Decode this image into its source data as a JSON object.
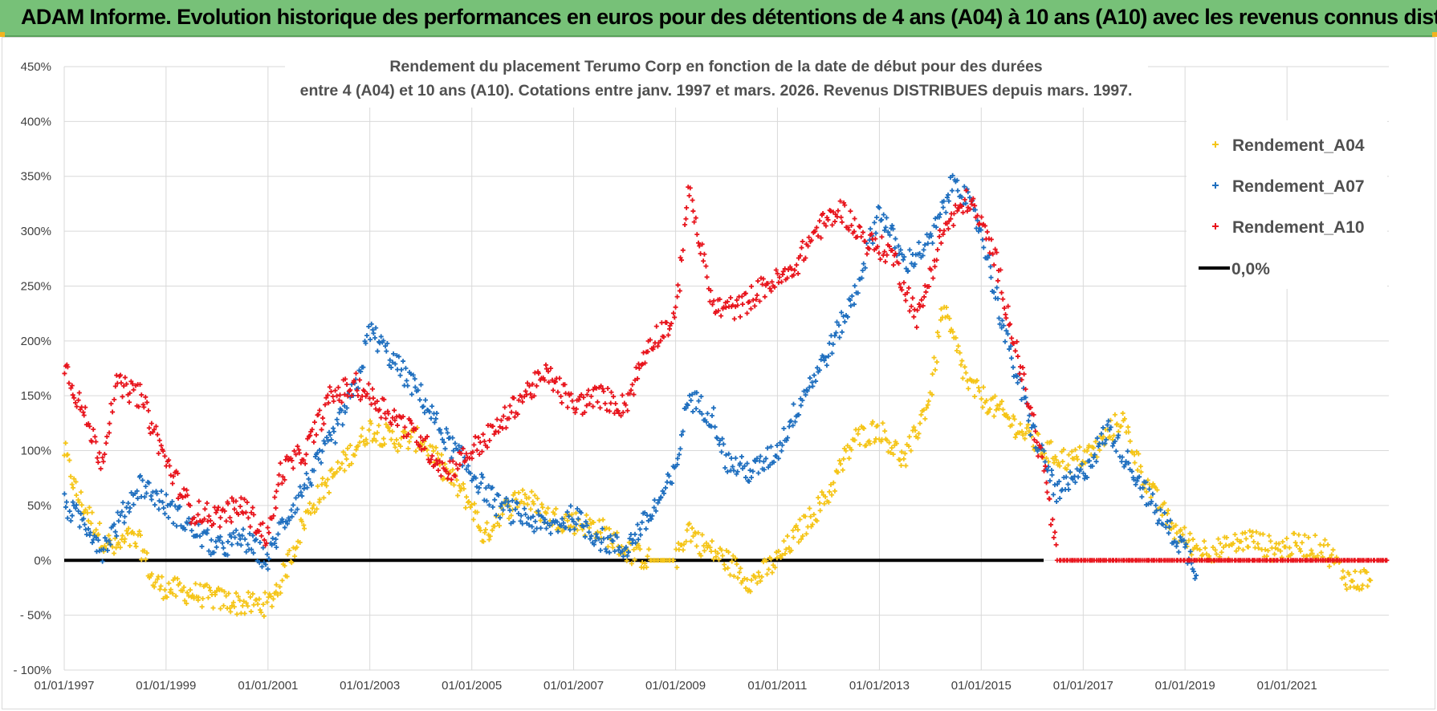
{
  "banner": {
    "text": "ADAM Informe. Evolution historique des performances en euros pour des détentions de 4 ans (A04) à 10 ans (A10) avec les revenus connus distribués"
  },
  "colors": {
    "banner_bg": "#77c178",
    "a04": "#f5c518",
    "a07": "#1f6fbf",
    "a10": "#e8141c",
    "zero": "#000000",
    "grid": "#d9d9d9"
  },
  "chart_data": {
    "type": "scatter",
    "title_lines": [
      "Rendement du placement Terumo Corp en fonction de la date de début pour des durées",
      "entre 4 (A04) et 10 ans (A10). Cotations entre janv. 1997 et mars. 2026. Revenus DISTRIBUES depuis mars. 1997."
    ],
    "xlabel": "",
    "ylabel": "",
    "x_ticks": [
      "01/01/1997",
      "01/01/1999",
      "01/01/2001",
      "01/01/2003",
      "01/01/2005",
      "01/01/2007",
      "01/01/2009",
      "01/01/2011",
      "01/01/2013",
      "01/01/2015",
      "01/01/2017",
      "01/01/2019",
      "01/01/2021"
    ],
    "x_range": [
      "1997-01-01",
      "2023-01-01"
    ],
    "y_ticks": [
      "- 100%",
      "- 50%",
      "0%",
      "50%",
      "100%",
      "150%",
      "200%",
      "250%",
      "300%",
      "350%",
      "400%",
      "450%"
    ],
    "ylim": [
      -100,
      450
    ],
    "grid": true,
    "legend_position": "top-right",
    "series": [
      {
        "name": "Rendement_A04",
        "marker": "+",
        "points": [
          [
            "1997-01",
            100
          ],
          [
            "1997-04",
            60
          ],
          [
            "1997-07",
            40
          ],
          [
            "1997-10",
            20
          ],
          [
            "1998-01",
            10
          ],
          [
            "1998-04",
            20
          ],
          [
            "1998-07",
            15
          ],
          [
            "1998-10",
            -20
          ],
          [
            "1999-01",
            -25
          ],
          [
            "1999-07",
            -30
          ],
          [
            "2000-01",
            -35
          ],
          [
            "2000-07",
            -40
          ],
          [
            "2001-01",
            -40
          ],
          [
            "2001-04",
            -20
          ],
          [
            "2001-07",
            10
          ],
          [
            "2001-10",
            40
          ],
          [
            "2002-01",
            60
          ],
          [
            "2002-07",
            90
          ],
          [
            "2003-01",
            120
          ],
          [
            "2003-07",
            110
          ],
          [
            "2004-01",
            110
          ],
          [
            "2004-07",
            80
          ],
          [
            "2005-01",
            50
          ],
          [
            "2005-04",
            20
          ],
          [
            "2005-07",
            40
          ],
          [
            "2006-01",
            60
          ],
          [
            "2006-07",
            40
          ],
          [
            "2007-01",
            35
          ],
          [
            "2007-07",
            30
          ],
          [
            "2008-01",
            10
          ],
          [
            "2008-07",
            0
          ],
          [
            "2009-01",
            0
          ],
          [
            "2009-04",
            30
          ],
          [
            "2009-07",
            15
          ],
          [
            "2010-01",
            0
          ],
          [
            "2010-07",
            -20
          ],
          [
            "2011-01",
            0
          ],
          [
            "2011-07",
            30
          ],
          [
            "2012-01",
            60
          ],
          [
            "2012-07",
            110
          ],
          [
            "2013-01",
            120
          ],
          [
            "2013-07",
            90
          ],
          [
            "2014-01",
            150
          ],
          [
            "2014-04",
            230
          ],
          [
            "2014-10",
            160
          ],
          [
            "2015-04",
            140
          ],
          [
            "2015-10",
            120
          ],
          [
            "2016-04",
            100
          ],
          [
            "2016-10",
            90
          ],
          [
            "2017-04",
            100
          ],
          [
            "2017-10",
            130
          ],
          [
            "2018-04",
            70
          ],
          [
            "2018-10",
            30
          ],
          [
            "2019-04",
            10
          ],
          [
            "2019-10",
            10
          ],
          [
            "2020-04",
            20
          ],
          [
            "2020-10",
            10
          ],
          [
            "2021-04",
            15
          ],
          [
            "2021-10",
            10
          ],
          [
            "2022-04",
            -20
          ],
          [
            "2022-09",
            -15
          ]
        ]
      },
      {
        "name": "Rendement_A07",
        "marker": "+",
        "points": [
          [
            "1997-01",
            50
          ],
          [
            "1997-07",
            30
          ],
          [
            "1997-10",
            10
          ],
          [
            "1998-01",
            30
          ],
          [
            "1998-07",
            70
          ],
          [
            "1999-01",
            50
          ],
          [
            "1999-07",
            30
          ],
          [
            "2000-01",
            10
          ],
          [
            "2000-07",
            20
          ],
          [
            "2001-01",
            0
          ],
          [
            "2001-04",
            30
          ],
          [
            "2001-10",
            70
          ],
          [
            "2002-04",
            110
          ],
          [
            "2002-10",
            160
          ],
          [
            "2003-01",
            210
          ],
          [
            "2003-07",
            180
          ],
          [
            "2004-01",
            150
          ],
          [
            "2004-07",
            110
          ],
          [
            "2005-01",
            80
          ],
          [
            "2005-07",
            50
          ],
          [
            "2006-01",
            40
          ],
          [
            "2006-07",
            30
          ],
          [
            "2007-01",
            40
          ],
          [
            "2007-07",
            20
          ],
          [
            "2008-01",
            10
          ],
          [
            "2008-07",
            40
          ],
          [
            "2009-01",
            80
          ],
          [
            "2009-04",
            150
          ],
          [
            "2009-10",
            130
          ],
          [
            "2010-01",
            90
          ],
          [
            "2010-07",
            80
          ],
          [
            "2011-01",
            100
          ],
          [
            "2011-07",
            150
          ],
          [
            "2012-01",
            190
          ],
          [
            "2012-07",
            240
          ],
          [
            "2013-01",
            320
          ],
          [
            "2013-07",
            270
          ],
          [
            "2014-01",
            290
          ],
          [
            "2014-07",
            350
          ],
          [
            "2015-01",
            300
          ],
          [
            "2015-07",
            200
          ],
          [
            "2016-01",
            120
          ],
          [
            "2016-07",
            60
          ],
          [
            "2017-01",
            80
          ],
          [
            "2017-07",
            120
          ],
          [
            "2018-01",
            80
          ],
          [
            "2018-07",
            40
          ],
          [
            "2019-01",
            10
          ],
          [
            "2019-04",
            -10
          ]
        ]
      },
      {
        "name": "Rendement_A10",
        "marker": "+",
        "points": [
          [
            "1997-01",
            180
          ],
          [
            "1997-07",
            120
          ],
          [
            "1997-10",
            90
          ],
          [
            "1998-01",
            160
          ],
          [
            "1998-07",
            150
          ],
          [
            "1999-01",
            90
          ],
          [
            "1999-07",
            45
          ],
          [
            "2000-01",
            40
          ],
          [
            "2000-07",
            50
          ],
          [
            "2001-01",
            20
          ],
          [
            "2001-04",
            80
          ],
          [
            "2001-10",
            100
          ],
          [
            "2002-04",
            150
          ],
          [
            "2002-10",
            160
          ],
          [
            "2003-01",
            150
          ],
          [
            "2003-07",
            130
          ],
          [
            "2004-01",
            110
          ],
          [
            "2004-07",
            80
          ],
          [
            "2005-01",
            100
          ],
          [
            "2005-07",
            120
          ],
          [
            "2006-01",
            150
          ],
          [
            "2006-07",
            170
          ],
          [
            "2007-01",
            140
          ],
          [
            "2007-07",
            150
          ],
          [
            "2008-01",
            140
          ],
          [
            "2008-07",
            200
          ],
          [
            "2009-01",
            220
          ],
          [
            "2009-04",
            340
          ],
          [
            "2009-10",
            230
          ],
          [
            "2010-04",
            230
          ],
          [
            "2010-10",
            250
          ],
          [
            "2011-04",
            260
          ],
          [
            "2011-10",
            300
          ],
          [
            "2012-04",
            320
          ],
          [
            "2012-10",
            290
          ],
          [
            "2013-04",
            280
          ],
          [
            "2013-10",
            220
          ],
          [
            "2014-04",
            300
          ],
          [
            "2014-10",
            330
          ],
          [
            "2015-04",
            280
          ],
          [
            "2015-10",
            180
          ],
          [
            "2016-04",
            80
          ],
          [
            "2016-07",
            0
          ],
          [
            "2017-07",
            0
          ],
          [
            "2019-01",
            0
          ],
          [
            "2021-01",
            0
          ],
          [
            "2023-01",
            0
          ]
        ]
      }
    ],
    "reference_line": {
      "name": "0,0%",
      "y": 0
    }
  }
}
